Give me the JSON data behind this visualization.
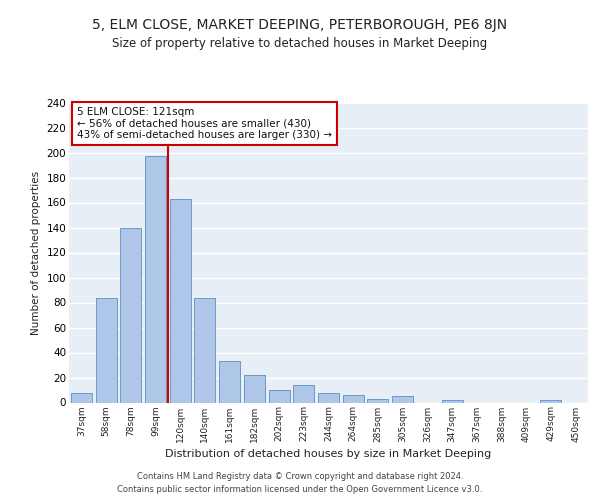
{
  "title": "5, ELM CLOSE, MARKET DEEPING, PETERBOROUGH, PE6 8JN",
  "subtitle": "Size of property relative to detached houses in Market Deeping",
  "xlabel": "Distribution of detached houses by size in Market Deeping",
  "ylabel": "Number of detached properties",
  "categories": [
    "37sqm",
    "58sqm",
    "78sqm",
    "99sqm",
    "120sqm",
    "140sqm",
    "161sqm",
    "182sqm",
    "202sqm",
    "223sqm",
    "244sqm",
    "264sqm",
    "285sqm",
    "305sqm",
    "326sqm",
    "347sqm",
    "367sqm",
    "388sqm",
    "409sqm",
    "429sqm",
    "450sqm"
  ],
  "values": [
    8,
    84,
    140,
    197,
    163,
    84,
    33,
    22,
    10,
    14,
    8,
    6,
    3,
    5,
    0,
    2,
    0,
    0,
    0,
    2,
    0
  ],
  "bar_color": "#aec6e8",
  "bar_edge_color": "#5a8fc2",
  "vline_x_index": 4,
  "vline_color": "#cc0000",
  "annotation_text": "5 ELM CLOSE: 121sqm\n← 56% of detached houses are smaller (430)\n43% of semi-detached houses are larger (330) →",
  "annotation_box_color": "#ffffff",
  "annotation_box_edge": "#cc0000",
  "ylim": [
    0,
    240
  ],
  "yticks": [
    0,
    20,
    40,
    60,
    80,
    100,
    120,
    140,
    160,
    180,
    200,
    220,
    240
  ],
  "bg_color": "#e8eef5",
  "grid_color": "#ffffff",
  "footer_line1": "Contains HM Land Registry data © Crown copyright and database right 2024.",
  "footer_line2": "Contains public sector information licensed under the Open Government Licence v3.0."
}
